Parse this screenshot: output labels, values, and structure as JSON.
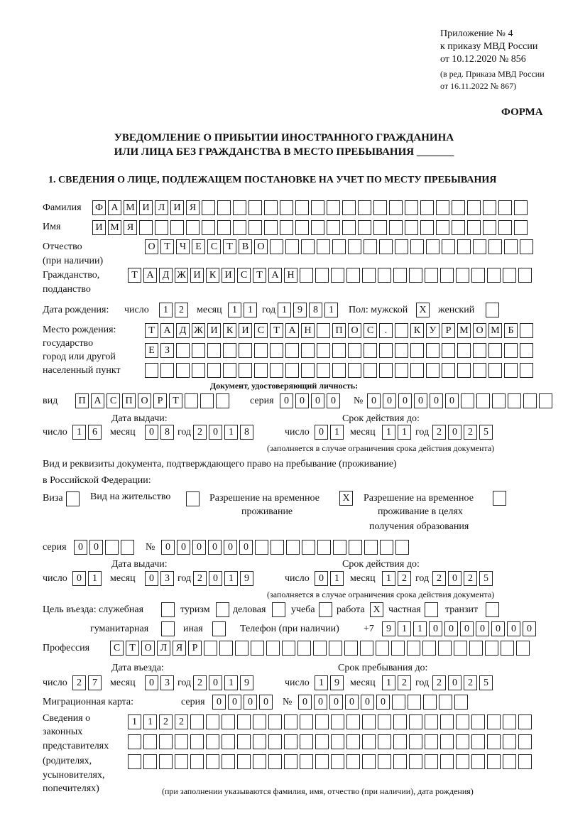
{
  "header": {
    "l1": "Приложение № 4",
    "l2": "к приказу МВД России",
    "l3": "от 10.12.2020 № 856",
    "l4": "(в ред. Приказа МВД России",
    "l5": "от 16.11.2022 № 867)",
    "forma": "ФОРМА"
  },
  "title": {
    "l1": "УВЕДОМЛЕНИЕ О ПРИБЫТИИ ИНОСТРАННОГО ГРАЖДАНИНА",
    "l2": "ИЛИ ЛИЦА БЕЗ ГРАЖДАНСТВА В МЕСТО ПРЕБЫВАНИЯ _______"
  },
  "section1": "1. СВЕДЕНИЯ О ЛИЦЕ, ПОДЛЕЖАЩЕМ ПОСТАНОВКЕ НА УЧЕТ ПО МЕСТУ ПРЕБЫВАНИЯ",
  "person": {
    "surname_label": "Фамилия",
    "surname": "ФАМИЛИЯ",
    "name_label": "Имя",
    "name": "ИМЯ",
    "patronymic_label": "Отчество",
    "patronymic_label2": "(при наличии)",
    "patronymic": "ОТЧЕСТВО",
    "citizenship_label": "Гражданство,",
    "citizenship_label2": "подданство",
    "citizenship": "ТАДЖИКИСТАН",
    "birth_label": "Дата рождения:",
    "day_label": "число",
    "month_label": "месяц",
    "year_label": "год",
    "birth_day": "12",
    "birth_month": "11",
    "birth_year": "1981",
    "sex_label": "Пол: мужской",
    "male": "X",
    "female_label": "женский",
    "female": "",
    "birthplace_label": "Место рождения:",
    "birthplace_label2": "государство",
    "birthplace_label3": "город или другой",
    "birthplace_label4": "населенный пункт",
    "birthplace_1": "ТАДЖИКИСТАН ПОС. КУРМОМБ",
    "birthplace_2": "ЕЗ",
    "birthplace_3": ""
  },
  "id_doc": {
    "title": "Документ, удостоверяющий личность:",
    "type_label": "вид",
    "type": "ПАСПОРТ",
    "series_label": "серия",
    "series": "0000",
    "number_label": "№",
    "number": "000000",
    "issue_label": "Дата выдачи:",
    "issue_day": "16",
    "issue_month": "08",
    "issue_year": "2018",
    "valid_label": "Срок действия до:",
    "valid_day": "01",
    "valid_month": "11",
    "valid_year": "2025",
    "note": "(заполняется в случае ограничения срока действия документа)"
  },
  "stay_doc": {
    "label1": "Вид и реквизиты документа, подтверждающего право на пребывание (проживание)",
    "label2": "в Российской Федерации:",
    "visa_label": "Виза",
    "visa": "",
    "residence_label": "Вид на жительство",
    "residence": "",
    "trp_label1": "Разрешение на временное",
    "trp_label2": "проживание",
    "trp": "X",
    "trp_edu_label1": "Разрешение на временное",
    "trp_edu_label2": "проживание в целях",
    "trp_edu_label3": "получения образования",
    "trp_edu": "",
    "series_label": "серия",
    "series": "00",
    "number_label": "№",
    "number": "000000",
    "issue_label": "Дата выдачи:",
    "issue_day": "01",
    "issue_month": "03",
    "issue_year": "2019",
    "valid_label": "Срок действия до:",
    "valid_day": "01",
    "valid_month": "12",
    "valid_year": "2025",
    "note": "(заполняется в случае ограничения срока действия документа)"
  },
  "purpose": {
    "label": "Цель въезда: служебная",
    "service": "",
    "tourism_label": "туризм",
    "tourism": "",
    "business_label": "деловая",
    "business": "",
    "study_label": "учеба",
    "study": "",
    "work_label": "работа",
    "work": "X",
    "private_label": "частная",
    "private": "",
    "transit_label": "транзит",
    "transit": "",
    "humanitarian_label": "гуманитарная",
    "humanitarian": "",
    "other_label": "иная",
    "other": "",
    "phone_label": "Телефон (при наличии)",
    "phone_prefix": "+7",
    "phone": "9110000000"
  },
  "profession_label": "Профессия",
  "profession": "СТОЛЯР",
  "entry": {
    "label": "Дата въезда:",
    "day": "27",
    "month": "03",
    "year": "2019",
    "stay_label": "Срок пребывания до:",
    "stay_day": "19",
    "stay_month": "12",
    "stay_year": "2025"
  },
  "migration": {
    "label": "Миграционная карта:",
    "series_label": "серия",
    "series": "0000",
    "number_label": "№",
    "number": "000000"
  },
  "reps": {
    "l1": "Сведения о",
    "l2": "законных",
    "l3": "представителях",
    "l4": "(родителях,",
    "l5": "усыновителях,",
    "l6": "попечителях)",
    "row1": "1122",
    "row2": "",
    "row3": "",
    "note": "(при заполнении указываются фамилия, имя, отчество (при наличии), дата рождения)"
  }
}
